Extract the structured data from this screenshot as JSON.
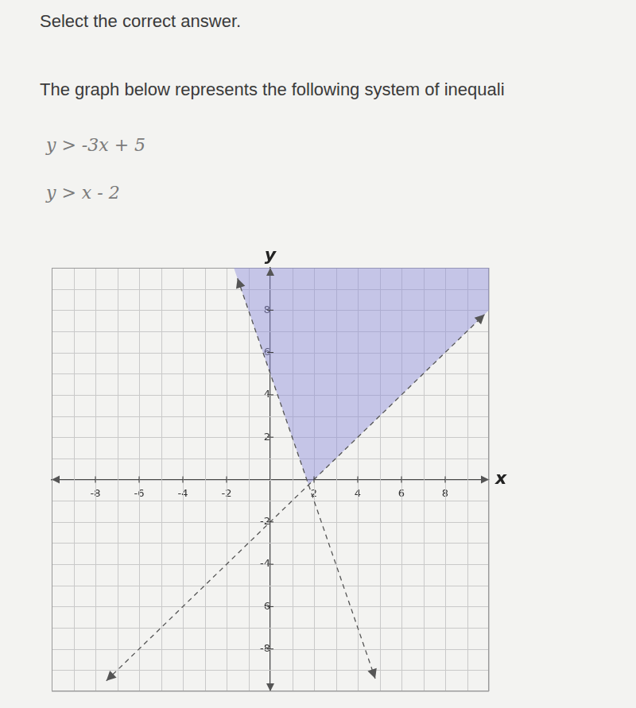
{
  "chart_data": {
    "type": "line",
    "title": "Select the correct answer.",
    "subtitle": "The graph below represents the following system of inequali",
    "annotations": [
      "y > -3x + 5",
      "y > x - 2"
    ],
    "xlabel": "x",
    "ylabel": "y",
    "xlim": [
      -10,
      10
    ],
    "ylim": [
      -10,
      10
    ],
    "xticks": [
      -8,
      -6,
      -4,
      -2,
      2,
      4,
      6,
      8
    ],
    "yticks": [
      -8,
      -6,
      -4,
      -2,
      2,
      4,
      6,
      8
    ],
    "grid": true,
    "series": [
      {
        "type": "area",
        "x": [
          -1.67,
          1.75,
          10
        ],
        "values": [
          10,
          -0.25,
          8
        ],
        "color": "#8f8fdc"
      },
      {
        "type": "line",
        "x": [
          -1.5,
          4.8
        ],
        "values": [
          9.5,
          -9.4
        ],
        "color": "#555555",
        "line_style": "dashed",
        "marker": "arrow"
      },
      {
        "type": "line",
        "x": [
          -7.5,
          9.8
        ],
        "values": [
          -9.5,
          7.8
        ],
        "color": "#555555",
        "line_style": "dashed",
        "marker": "arrow"
      }
    ]
  }
}
